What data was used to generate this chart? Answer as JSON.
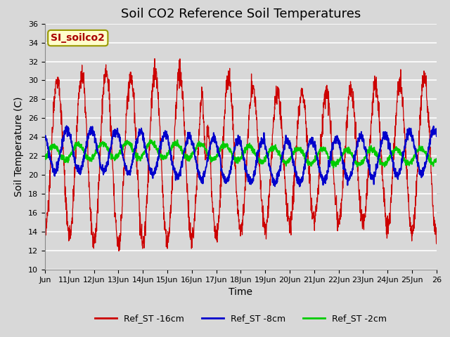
{
  "title": "Soil CO2 Reference Soil Temperatures",
  "ylabel": "Soil Temperature (C)",
  "xlabel": "Time",
  "annotation": "SI_soilco2",
  "ylim": [
    10,
    36
  ],
  "yticks": [
    10,
    12,
    14,
    16,
    18,
    20,
    22,
    24,
    26,
    28,
    30,
    32,
    34,
    36
  ],
  "xlim": [
    0,
    16
  ],
  "xtick_labels": [
    "Jun",
    "11Jun",
    "12Jun",
    "13Jun",
    "14Jun",
    "15Jun",
    "16Jun",
    "17Jun",
    "18Jun",
    "19Jun",
    "20Jun",
    "21Jun",
    "22Jun",
    "23Jun",
    "24Jun",
    "25Jun",
    "26"
  ],
  "xtick_positions": [
    0,
    1,
    2,
    3,
    4,
    5,
    6,
    7,
    8,
    9,
    10,
    11,
    12,
    13,
    14,
    15,
    16
  ],
  "legend_labels": [
    "Ref_ST -16cm",
    "Ref_ST -8cm",
    "Ref_ST -2cm"
  ],
  "line_red_color": "#cc0000",
  "line_blue_color": "#0000cc",
  "line_green_color": "#00cc00",
  "bg_color": "#d8d8d8",
  "plot_bg_color": "#d8d8d8",
  "title_fontsize": 13,
  "axis_label_fontsize": 10,
  "tick_fontsize": 8,
  "grid_color": "#ffffff",
  "annotation_bg": "#ffffcc",
  "annotation_border": "#999900",
  "annotation_text_color": "#aa0000",
  "annotation_fontsize": 10
}
